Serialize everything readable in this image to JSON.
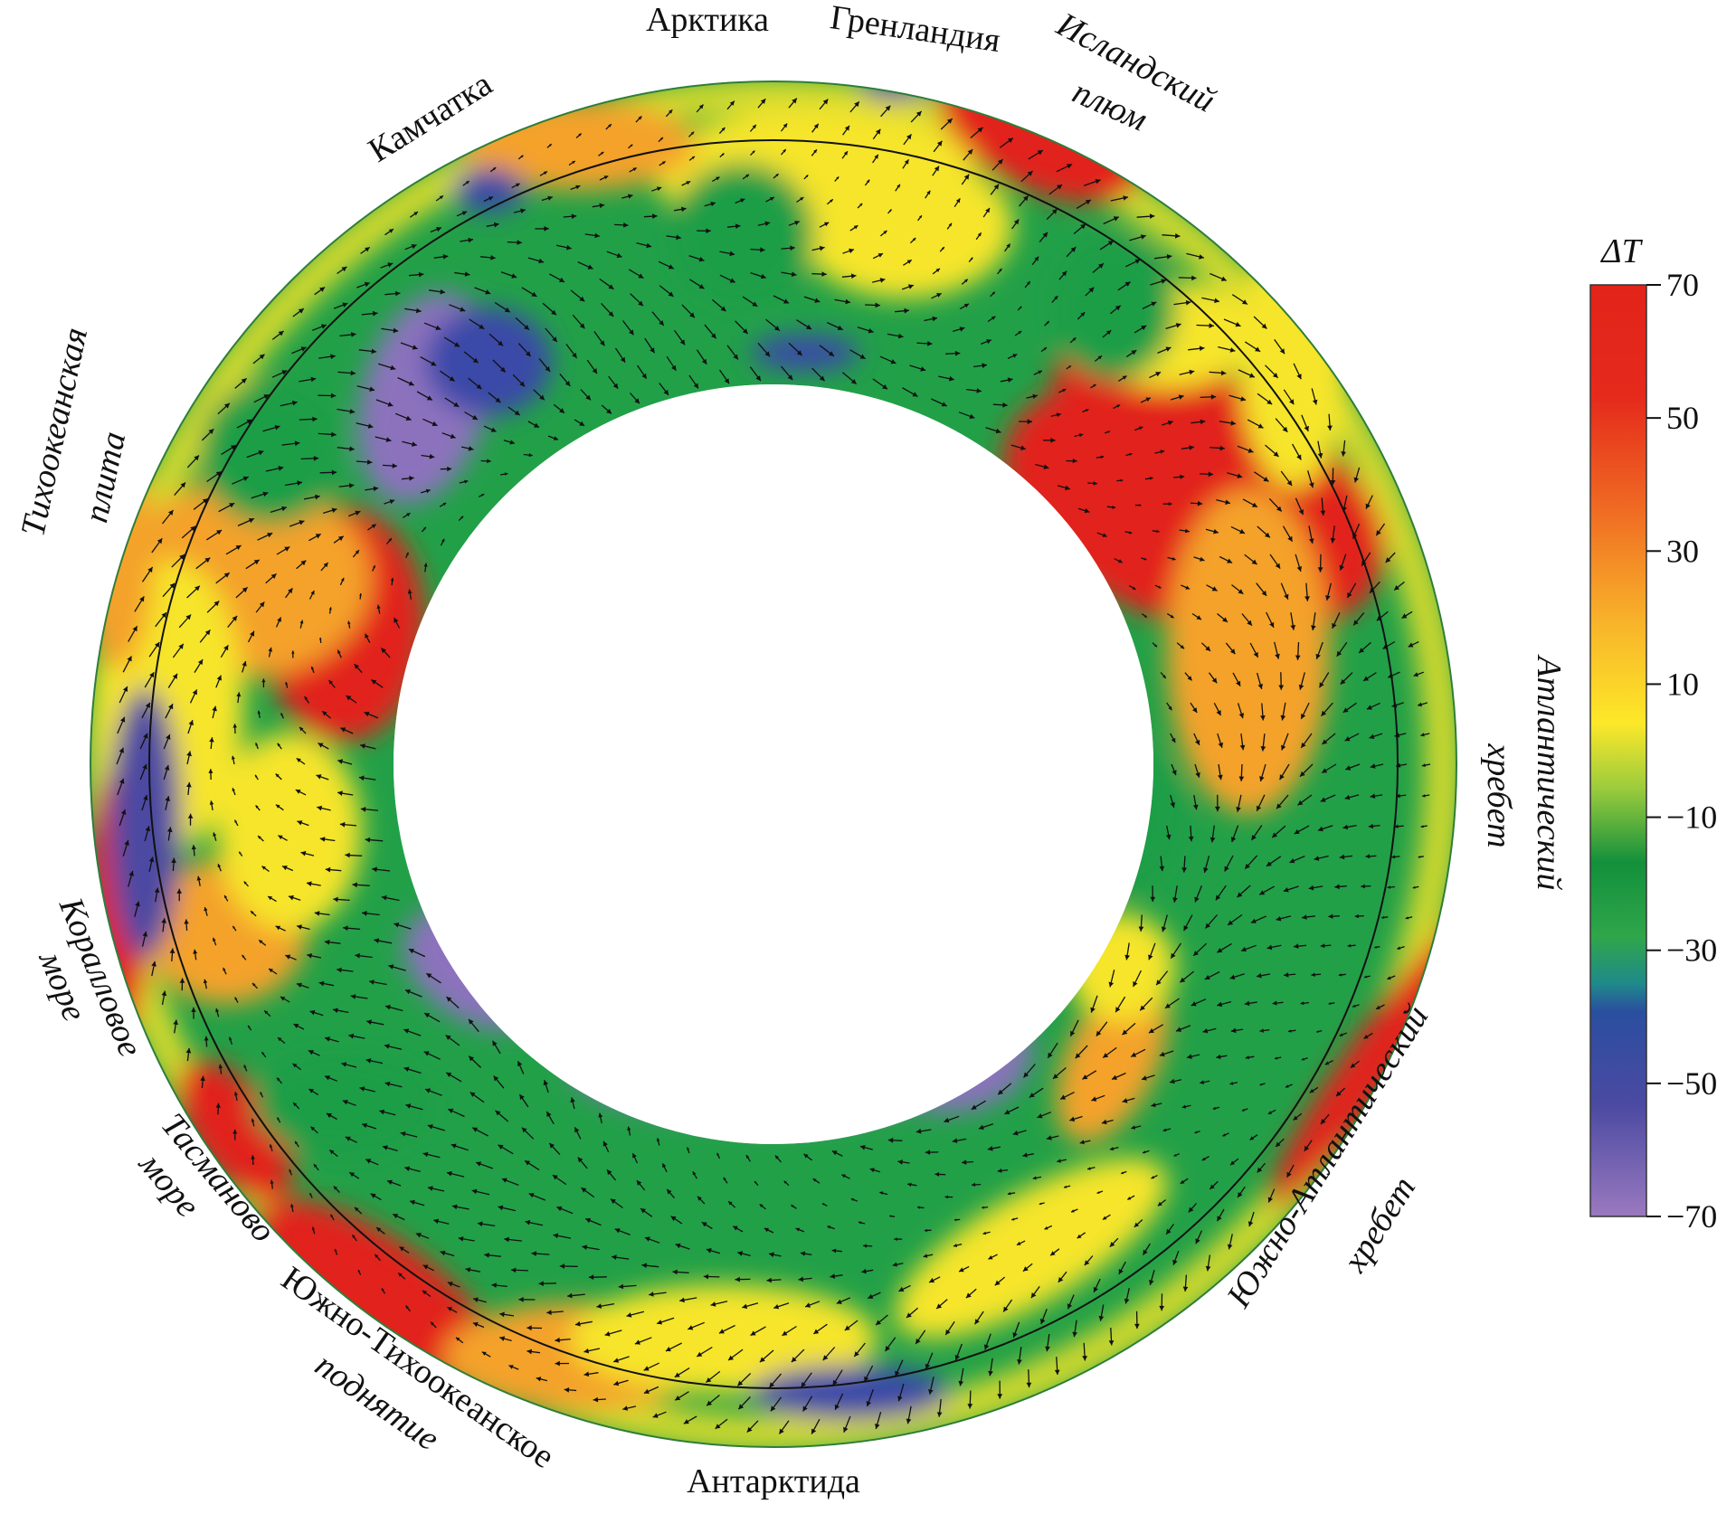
{
  "region_labels": [
    {
      "id": "arctic",
      "text": "Арктика"
    },
    {
      "id": "greenland",
      "text": "Гренландия"
    },
    {
      "id": "iceland-plume-1",
      "text": "Исландский"
    },
    {
      "id": "iceland-plume-2",
      "text": "плюм"
    },
    {
      "id": "kamchatka",
      "text": "Камчатка"
    },
    {
      "id": "pacific-plate-1",
      "text": "Тихоокеанская"
    },
    {
      "id": "pacific-plate-2",
      "text": "плита"
    },
    {
      "id": "atlantic-ridge-1",
      "text": "Атлантический"
    },
    {
      "id": "atlantic-ridge-2",
      "text": "хребет"
    },
    {
      "id": "coral-sea-1",
      "text": "Коралловое"
    },
    {
      "id": "coral-sea-2",
      "text": "море"
    },
    {
      "id": "tasman-sea-1",
      "text": "Тасманово"
    },
    {
      "id": "tasman-sea-2",
      "text": "море"
    },
    {
      "id": "south-pacific-rise-1",
      "text": "Южно-Тихоокеанское"
    },
    {
      "id": "south-pacific-rise-2",
      "text": "поднятие"
    },
    {
      "id": "antarctica",
      "text": "Антарктида"
    },
    {
      "id": "south-atlantic-ridge-1",
      "text": "Южно-Атлантический"
    },
    {
      "id": "south-atlantic-ridge-2",
      "text": "хребет"
    }
  ],
  "colorbar": {
    "title": "ΔT",
    "ticks": [
      "70",
      "50",
      "30",
      "10",
      "−10",
      "−30",
      "−50",
      "−70"
    ],
    "gradient": [
      "#e2231a",
      "#ee4e20",
      "#f79b27",
      "#fde829",
      "#79c143",
      "#13903c",
      "#2fa64a",
      "#2a4e9f",
      "#4b4aa2",
      "#9a79bf"
    ]
  },
  "field_colors": {
    "red": "#e2231a",
    "orange": "#f4a22b",
    "yellow": "#f6e52c",
    "green": "#1f9e47",
    "lightgreen": "#6cbf45",
    "blue": "#3b4aa8",
    "purple": "#8c72bd"
  }
}
